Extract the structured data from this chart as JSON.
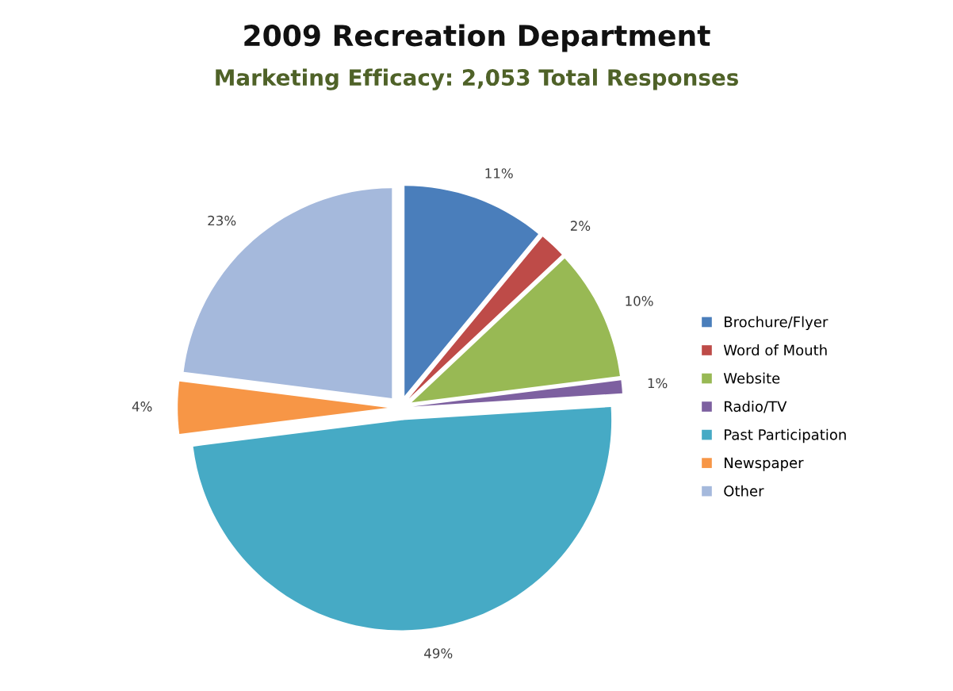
{
  "chart_data": {
    "type": "pie",
    "title": "2009 Recreation Department",
    "subtitle": "Marketing Efficacy: 2,053 Total Responses",
    "categories": [
      "Brochure/Flyer",
      "Word of Mouth",
      "Website",
      "Radio/TV",
      "Past Participation",
      "Newspaper",
      "Other"
    ],
    "values": [
      11,
      2,
      10,
      1,
      49,
      4,
      23
    ],
    "colors": [
      "#4a7ebb",
      "#be4b48",
      "#98b954",
      "#7d60a0",
      "#46aac5",
      "#f79646",
      "#a5b9dc"
    ],
    "value_labels": [
      "11%",
      "2%",
      "10%",
      "1%",
      "49%",
      "4%",
      "23%"
    ],
    "legend": "right"
  }
}
